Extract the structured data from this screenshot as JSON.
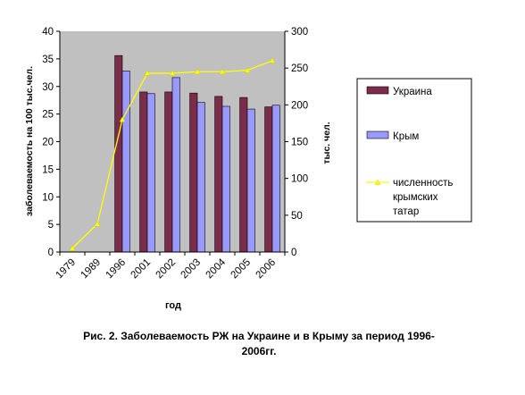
{
  "chart_data": {
    "type": "bar",
    "categories": [
      "1979",
      "1989",
      "1996",
      "2001",
      "2002",
      "2003",
      "2004",
      "2005",
      "2006"
    ],
    "series": [
      {
        "name": "Украина",
        "type": "bar",
        "axis": "left",
        "color": "#7b2c4a",
        "values": [
          null,
          null,
          35.6,
          29.0,
          29.0,
          28.8,
          28.2,
          28.0,
          26.3
        ]
      },
      {
        "name": "Крым",
        "type": "bar",
        "axis": "left",
        "color": "#9999ff",
        "values": [
          null,
          null,
          32.8,
          28.7,
          31.6,
          27.1,
          26.4,
          25.9,
          26.6
        ]
      },
      {
        "name": "численность крымских татар",
        "type": "line",
        "axis": "right",
        "color": "#ffff00",
        "values": [
          5,
          38,
          180,
          243,
          243,
          245,
          245,
          247,
          260
        ]
      }
    ],
    "xlabel": "год",
    "ylabel": "заболеваемость на 100 тыс.чел.",
    "y2label": "тыс. чел.",
    "ylim": [
      0,
      40
    ],
    "y2lim": [
      0,
      300
    ],
    "yticks": [
      "0",
      "5",
      "10",
      "15",
      "20",
      "25",
      "30",
      "35",
      "40"
    ],
    "y2ticks": [
      "0",
      "50",
      "100",
      "150",
      "200",
      "250",
      "300"
    ],
    "legend_position": "right",
    "plot_background": "#c0c0c0",
    "grid": false
  },
  "caption": {
    "line1": "Рис. 2. Заболеваемость РЖ на Украине и в Крыму за период 1996-",
    "line2": "2006гг."
  }
}
